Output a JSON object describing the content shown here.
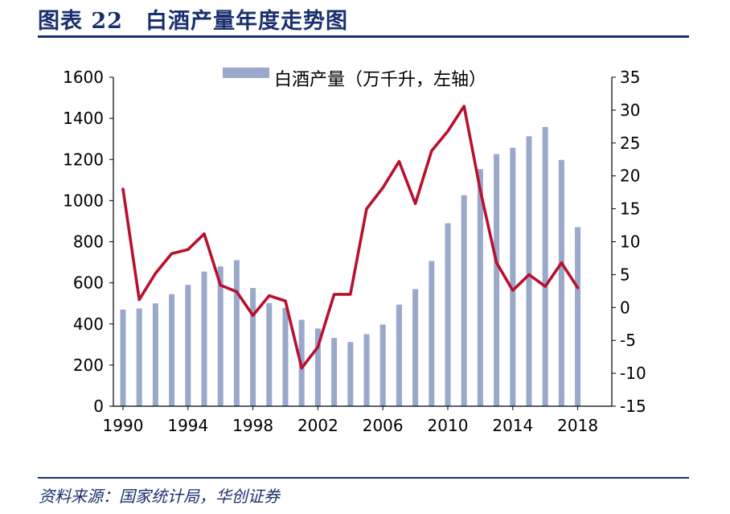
{
  "title": "图表 22　白酒产量年度走势图",
  "source": "资料来源：国家统计局，华创证券",
  "chart_data": {
    "type": "bar",
    "x": [
      1990,
      1991,
      1992,
      1993,
      1994,
      1995,
      1996,
      1997,
      1998,
      1999,
      2000,
      2001,
      2002,
      2003,
      2004,
      2005,
      2006,
      2007,
      2008,
      2009,
      2010,
      2011,
      2012,
      2013,
      2014,
      2015,
      2016,
      2017,
      2018
    ],
    "x_tick_labels": [
      "1990",
      "1994",
      "1998",
      "2002",
      "2006",
      "2010",
      "2014",
      "2018"
    ],
    "series": [
      {
        "name": "白酒产量（万千升，左轴）",
        "type": "bar",
        "axis": "left",
        "color": "#9aa8cc",
        "values": [
          470,
          475,
          500,
          545,
          590,
          655,
          680,
          710,
          575,
          502,
          478,
          420,
          378,
          332,
          312,
          350,
          397,
          494,
          570,
          706,
          890,
          1026,
          1153,
          1226,
          1257,
          1313,
          1358,
          1198,
          871
        ]
      },
      {
        "name": "",
        "type": "line",
        "axis": "right",
        "color": "#b8102e",
        "values": [
          18,
          1.2,
          5.2,
          8.2,
          8.8,
          11.2,
          3.4,
          2.4,
          -1.2,
          1.8,
          1,
          -9.2,
          -6,
          2,
          2,
          15,
          18.2,
          22.2,
          15.8,
          23.8,
          26.8,
          30.6,
          17.8,
          6.8,
          2.6,
          5,
          3.2,
          6.8,
          3
        ]
      }
    ],
    "y_left": {
      "min": 0,
      "max": 1600,
      "ticks": [
        0,
        200,
        400,
        600,
        800,
        1000,
        1200,
        1400,
        1600
      ]
    },
    "y_right": {
      "min": -15,
      "max": 35,
      "ticks": [
        -15,
        -10,
        -5,
        0,
        5,
        10,
        15,
        20,
        25,
        30,
        35
      ]
    },
    "legend": {
      "placement": "top-center",
      "label": "白酒产量（万千升，左轴）"
    },
    "grid": false
  }
}
